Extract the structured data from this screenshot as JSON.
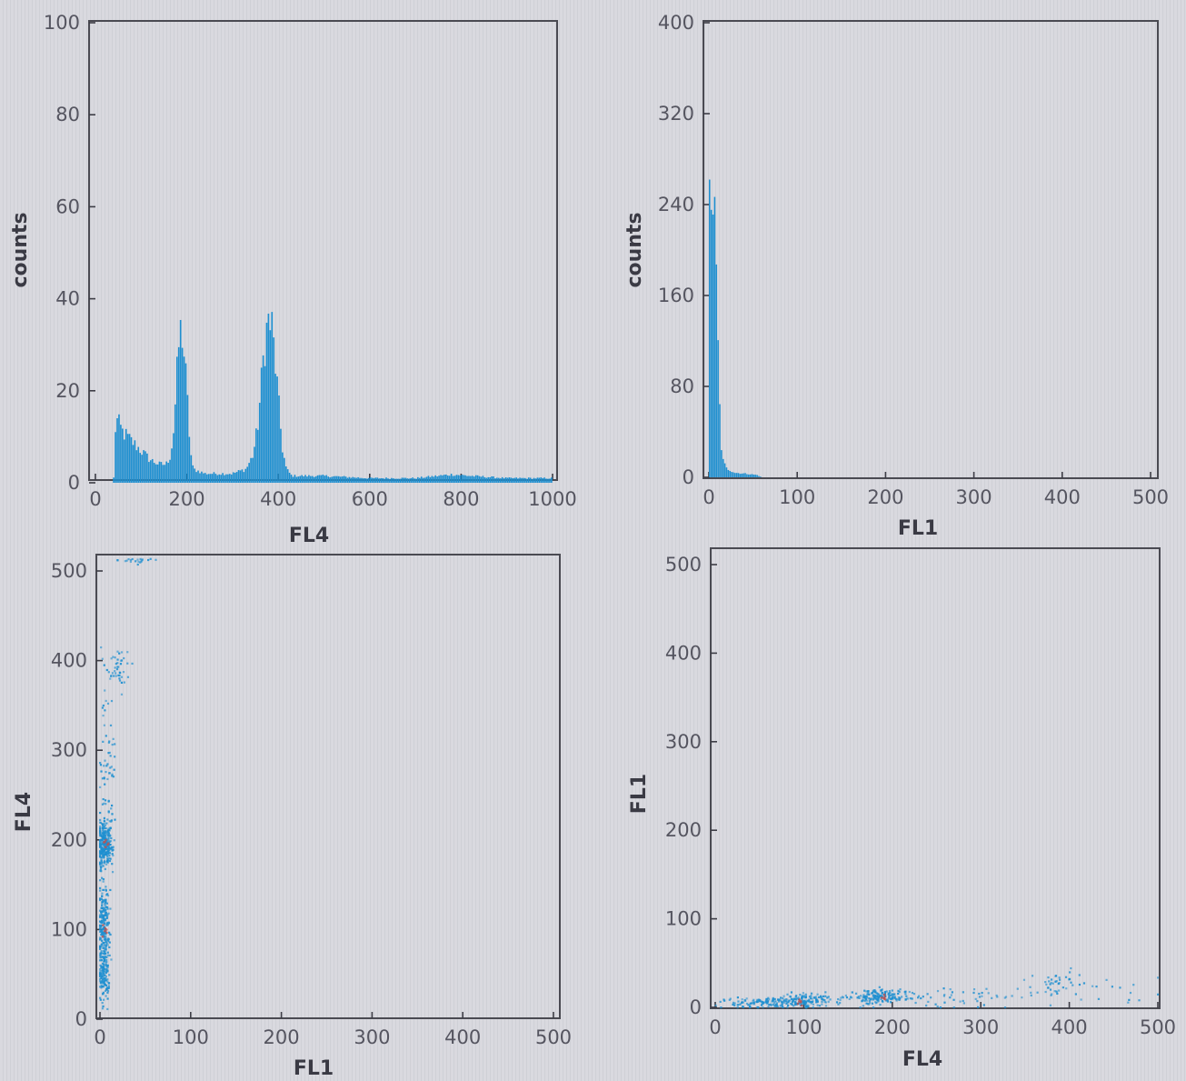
{
  "colors": {
    "series": "#1e8fd0",
    "density": "#c0504d"
  },
  "chart_data": [
    {
      "type": "bar",
      "title": "",
      "xlabel": "FL4",
      "ylabel": "counts",
      "xlim": [
        0,
        1000
      ],
      "ylim": [
        0,
        100
      ],
      "xticks": [
        0,
        200,
        400,
        600,
        800,
        1000
      ],
      "yticks": [
        0,
        20,
        40,
        60,
        80,
        100
      ],
      "grid": false,
      "profile": [
        [
          40,
          0
        ],
        [
          45,
          14
        ],
        [
          60,
          11
        ],
        [
          80,
          9
        ],
        [
          100,
          7
        ],
        [
          120,
          5
        ],
        [
          140,
          4
        ],
        [
          155,
          4
        ],
        [
          165,
          6
        ],
        [
          172,
          12
        ],
        [
          178,
          22
        ],
        [
          184,
          32
        ],
        [
          190,
          33
        ],
        [
          196,
          26
        ],
        [
          202,
          17
        ],
        [
          208,
          7
        ],
        [
          214,
          3
        ],
        [
          240,
          2
        ],
        [
          300,
          2
        ],
        [
          330,
          3
        ],
        [
          345,
          6
        ],
        [
          355,
          12
        ],
        [
          362,
          20
        ],
        [
          370,
          30
        ],
        [
          378,
          35
        ],
        [
          386,
          34
        ],
        [
          394,
          26
        ],
        [
          402,
          16
        ],
        [
          410,
          7
        ],
        [
          418,
          3
        ],
        [
          430,
          1.5
        ],
        [
          500,
          1.5
        ],
        [
          600,
          1
        ],
        [
          700,
          1
        ],
        [
          780,
          1.8
        ],
        [
          820,
          1.5
        ],
        [
          900,
          1
        ],
        [
          1000,
          1
        ]
      ]
    },
    {
      "type": "bar",
      "title": "",
      "xlabel": "FL1",
      "ylabel": "counts",
      "xlim": [
        0,
        500
      ],
      "ylim": [
        0,
        400
      ],
      "xticks": [
        0,
        100,
        200,
        300,
        400,
        500
      ],
      "yticks": [
        0,
        80,
        160,
        240,
        320,
        400
      ],
      "grid": false,
      "profile": [
        [
          0,
          150
        ],
        [
          1,
          240
        ],
        [
          2,
          258
        ],
        [
          4,
          255
        ],
        [
          6,
          235
        ],
        [
          8,
          190
        ],
        [
          10,
          130
        ],
        [
          12,
          70
        ],
        [
          14,
          30
        ],
        [
          16,
          15
        ],
        [
          20,
          8
        ],
        [
          30,
          4
        ],
        [
          45,
          3
        ],
        [
          55,
          2
        ],
        [
          60,
          0
        ]
      ]
    },
    {
      "type": "scatter",
      "title": "",
      "xlabel": "FL1",
      "ylabel": "FL4",
      "xlim": [
        0,
        500
      ],
      "ylim": [
        0,
        500
      ],
      "xticks": [
        0,
        100,
        200,
        300,
        400,
        500
      ],
      "yticks": [
        0,
        100,
        200,
        300,
        400,
        500
      ],
      "grid": false,
      "clusters": [
        {
          "x": 5,
          "y": 195,
          "sx": 4,
          "sy": 12,
          "n": 280
        },
        {
          "x": 4,
          "y": 100,
          "sx": 3,
          "sy": 30,
          "n": 260
        },
        {
          "x": 4,
          "y": 45,
          "sx": 3,
          "sy": 12,
          "n": 90
        },
        {
          "x": 8,
          "y": 280,
          "sx": 5,
          "sy": 45,
          "n": 60
        },
        {
          "x": 18,
          "y": 390,
          "sx": 8,
          "sy": 12,
          "n": 45
        },
        {
          "x": 40,
          "y": 512,
          "sx": 12,
          "sy": 2,
          "n": 20
        }
      ],
      "hotspots": [
        {
          "x": 6,
          "y": 195
        },
        {
          "x": 4,
          "y": 100
        }
      ]
    },
    {
      "type": "scatter",
      "title": "",
      "xlabel": "FL4",
      "ylabel": "FL1",
      "xlim": [
        0,
        500
      ],
      "ylim": [
        0,
        500
      ],
      "xticks": [
        0,
        100,
        200,
        300,
        400,
        500
      ],
      "yticks": [
        0,
        100,
        200,
        300,
        400,
        500
      ],
      "grid": false,
      "clusters": [
        {
          "x": 60,
          "y": 5,
          "sx": 25,
          "sy": 3,
          "n": 140
        },
        {
          "x": 100,
          "y": 8,
          "sx": 15,
          "sy": 4,
          "n": 120
        },
        {
          "x": 185,
          "y": 12,
          "sx": 18,
          "sy": 4,
          "n": 170
        },
        {
          "x": 280,
          "y": 12,
          "sx": 45,
          "sy": 6,
          "n": 50
        },
        {
          "x": 385,
          "y": 25,
          "sx": 15,
          "sy": 8,
          "n": 45
        },
        {
          "x": 450,
          "y": 20,
          "sx": 30,
          "sy": 10,
          "n": 15
        }
      ],
      "hotspots": [
        {
          "x": 95,
          "y": 5
        },
        {
          "x": 190,
          "y": 12
        }
      ]
    }
  ]
}
